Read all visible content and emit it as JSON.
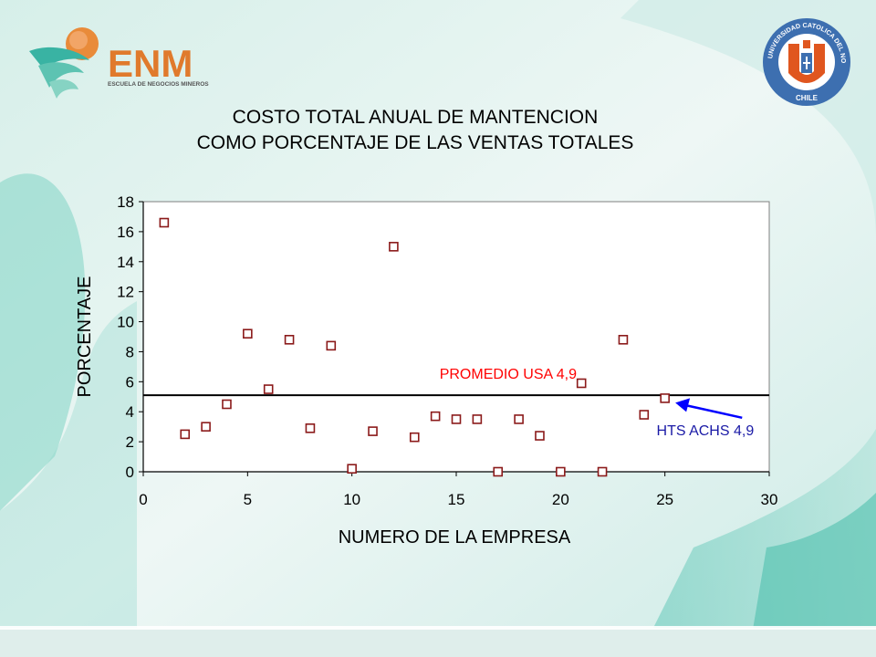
{
  "logos": {
    "enm_name": "ENM",
    "enm_subtitle": "ESCUELA DE NEGOCIOS MINEROS",
    "ucn_ring_text": "UNIVERSIDAD CATOLICA DEL NORTE",
    "ucn_bottom_text": "CHILE"
  },
  "colors": {
    "marker": "#8b1a1a",
    "promedio": "#ff0000",
    "hts": "#1a1aa6",
    "arrow": "#0000ff",
    "enm_orange": "#e07a2c"
  },
  "chart_data": {
    "type": "scatter",
    "title_lines": [
      "COSTO TOTAL ANUAL DE MANTENCION",
      "COMO PORCENTAJE DE LAS VENTAS TOTALES"
    ],
    "xlabel": "NUMERO DE LA EMPRESA",
    "ylabel": "PORCENTAJE",
    "xlim": [
      0,
      30
    ],
    "ylim": [
      0,
      18
    ],
    "xticks": [
      0,
      5,
      10,
      15,
      20,
      25,
      30
    ],
    "yticks": [
      0,
      2,
      4,
      6,
      8,
      10,
      12,
      14,
      16,
      18
    ],
    "grid": false,
    "points": [
      {
        "x": 1,
        "y": 16.6
      },
      {
        "x": 2,
        "y": 2.5
      },
      {
        "x": 3,
        "y": 3.0
      },
      {
        "x": 4,
        "y": 4.5
      },
      {
        "x": 5,
        "y": 9.2
      },
      {
        "x": 6,
        "y": 5.5
      },
      {
        "x": 7,
        "y": 8.8
      },
      {
        "x": 8,
        "y": 2.9
      },
      {
        "x": 9,
        "y": 8.4
      },
      {
        "x": 10,
        "y": 0.2
      },
      {
        "x": 11,
        "y": 2.7
      },
      {
        "x": 12,
        "y": 15.0
      },
      {
        "x": 13,
        "y": 2.3
      },
      {
        "x": 14,
        "y": 3.7
      },
      {
        "x": 15,
        "y": 3.5
      },
      {
        "x": 16,
        "y": 3.5
      },
      {
        "x": 17,
        "y": 0.0
      },
      {
        "x": 18,
        "y": 3.5
      },
      {
        "x": 19,
        "y": 2.4
      },
      {
        "x": 20,
        "y": 0.0
      },
      {
        "x": 21,
        "y": 5.9
      },
      {
        "x": 22,
        "y": 0.0
      },
      {
        "x": 23,
        "y": 8.8
      },
      {
        "x": 24,
        "y": 3.8
      },
      {
        "x": 25,
        "y": 4.9
      }
    ],
    "reference_line": {
      "y": 5.1
    },
    "annotations": {
      "promedio": {
        "text": "PROMEDIO USA 4,9"
      },
      "hts": {
        "text": "HTS ACHS 4,9"
      }
    }
  }
}
